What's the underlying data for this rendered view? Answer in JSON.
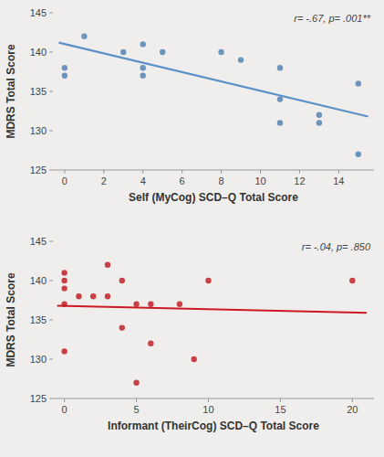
{
  "chart_data": [
    {
      "type": "scatter",
      "xlabel": "Self (MyCog) SCD–Q Total Score",
      "ylabel": "MDRS Total Score",
      "annotation": "r= -.67, p= .001**",
      "series": [
        {
          "type": "scatter",
          "color": "#5585b5",
          "x": [
            0,
            0,
            1,
            3,
            4,
            4,
            4,
            5,
            8,
            9,
            11,
            11,
            11,
            13,
            13,
            15,
            15
          ],
          "values": [
            138,
            137,
            142,
            140,
            141,
            138,
            137,
            140,
            140,
            139,
            134,
            131,
            138,
            132,
            131,
            136,
            127
          ]
        },
        {
          "type": "line",
          "color": "#5b8fc7",
          "x": [
            -0.3,
            15.5
          ],
          "values": [
            141.2,
            131.8
          ]
        }
      ],
      "xlim": [
        -0.6,
        15.8
      ],
      "ylim": [
        125,
        145
      ],
      "xticks": [
        0,
        2,
        4,
        6,
        8,
        10,
        12,
        14
      ],
      "yticks": [
        125,
        130,
        135,
        140,
        145
      ],
      "grid": false
    },
    {
      "type": "scatter",
      "xlabel": "Informant (TheirCog) SCD–Q Total Score",
      "ylabel": "MDRS Total Score",
      "annotation": "r= -.04, p= .850",
      "series": [
        {
          "type": "scatter",
          "color": "#c0202a",
          "x": [
            0,
            0,
            0,
            0,
            0,
            1,
            2,
            3,
            3,
            4,
            4,
            5,
            5,
            6,
            6,
            8,
            9,
            10,
            20
          ],
          "values": [
            141,
            140,
            139,
            137,
            131,
            138,
            138,
            142,
            138,
            140,
            134,
            137,
            127,
            132,
            137,
            137,
            130,
            140,
            140
          ]
        },
        {
          "type": "line",
          "color": "#cc1a22",
          "x": [
            -0.5,
            21.0
          ],
          "values": [
            136.8,
            135.9
          ]
        }
      ],
      "xlim": [
        -0.8,
        21.5
      ],
      "ylim": [
        125,
        145
      ],
      "xticks": [
        0,
        5,
        10,
        15,
        20
      ],
      "yticks": [
        125,
        130,
        135,
        140,
        145
      ],
      "grid": false
    }
  ]
}
